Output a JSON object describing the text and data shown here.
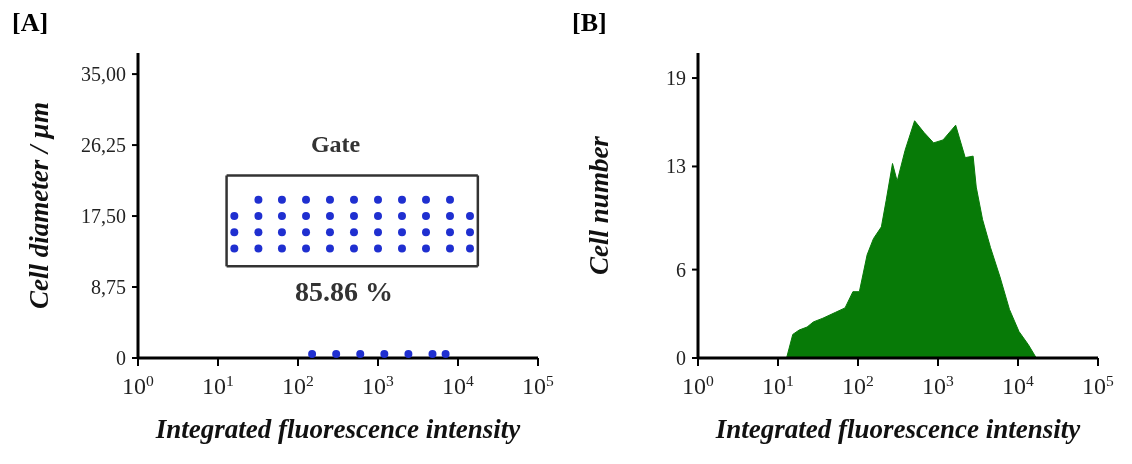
{
  "chart_data": [
    {
      "type": "scatter",
      "title": "[A]",
      "xlabel": "Integrated fluorescence intensity",
      "ylabel": "Cell diameter / µm",
      "log": "x",
      "marker": "circle",
      "xlim": [
        1,
        100000
      ],
      "xticks": [
        {
          "value": 1,
          "label": "10$^{0}$"
        },
        {
          "value": 10,
          "label": "10$^{1}$"
        },
        {
          "value": 100,
          "label": "10$^{2}$"
        },
        {
          "value": 1000,
          "label": "10$^{3}$"
        },
        {
          "value": 10000,
          "label": "10$^{4}$"
        },
        {
          "value": 100000,
          "label": "10$^{5}$"
        }
      ],
      "ylim": [
        0,
        37.6
      ],
      "yticks": [
        0,
        {
          "value": 8.75,
          "label": "8,75"
        },
        {
          "value": 17.5,
          "label": "17,50"
        },
        {
          "value": 26.25,
          "label": "26,25"
        },
        {
          "value": 35,
          "label": "35,00"
        }
      ],
      "annotations": [
        "Gate",
        "85.86 %"
      ],
      "series": [
        {
          "color": "#1f2fd0",
          "x": [
            16,
            32,
            63,
            126,
            251,
            501,
            1000,
            1995,
            3981,
            7943,
            14125,
            16,
            32,
            63,
            126,
            251,
            501,
            1000,
            1995,
            3981,
            7943,
            14125,
            16,
            32,
            63,
            126,
            251,
            501,
            1000,
            1995,
            3981,
            7943,
            14125,
            32,
            63,
            126,
            251,
            501,
            1000,
            1995,
            3981,
            7943,
            150,
            300,
            600,
            1200,
            2400,
            4800,
            7000
          ],
          "values": [
            13.5,
            13.5,
            13.5,
            13.5,
            13.5,
            13.5,
            13.5,
            13.5,
            13.5,
            13.5,
            13.5,
            15.5,
            15.5,
            15.5,
            15.5,
            15.5,
            15.5,
            15.5,
            15.5,
            15.5,
            15.5,
            15.5,
            17.5,
            17.5,
            17.5,
            17.5,
            17.5,
            17.5,
            17.5,
            17.5,
            17.5,
            17.5,
            17.5,
            19.5,
            19.5,
            19.5,
            19.5,
            19.5,
            19.5,
            19.5,
            19.5,
            19.5,
            0.5,
            0.5,
            0.5,
            0.5,
            0.5,
            0.5,
            0.5
          ]
        },
        {
          "type": "line",
          "marker": "none",
          "color": "#333333",
          "x": [
            12.8,
            17700
          ],
          "values": [
            22.5,
            22.5
          ]
        },
        {
          "type": "line",
          "marker": "none",
          "color": "#333333",
          "x": [
            12.8,
            17700
          ],
          "values": [
            11.3,
            11.3
          ]
        },
        {
          "type": "line",
          "marker": "none",
          "color": "#333333",
          "x": [
            12.8,
            12.8
          ],
          "values": [
            11.3,
            22.5
          ]
        },
        {
          "type": "line",
          "marker": "none",
          "color": "#333333",
          "x": [
            17700,
            17700
          ],
          "values": [
            11.3,
            22.5
          ]
        }
      ]
    },
    {
      "type": "area",
      "title": "[B]",
      "xlabel": "Integrated fluorescence intensity",
      "ylabel": "Cell number",
      "log": "x",
      "color": "#077a07",
      "xlim": [
        1,
        100000
      ],
      "xticks": [
        {
          "value": 1,
          "label": "10$^{0}$"
        },
        {
          "value": 10,
          "label": "10$^{1}$"
        },
        {
          "value": 100,
          "label": "10$^{2}$"
        },
        {
          "value": 1000,
          "label": "10$^{3}$"
        },
        {
          "value": 10000,
          "label": "10$^{4}$"
        },
        {
          "value": 100000,
          "label": "10$^{5}$"
        }
      ],
      "ylim": [
        0,
        20.7
      ],
      "yticks": [
        0,
        6,
        13,
        19
      ],
      "x": [
        12.8,
        15.3,
        18.4,
        23.1,
        27.7,
        36.4,
        52.4,
        68.9,
        86.4,
        104,
        130,
        156,
        196,
        225,
        270,
        309,
        388,
        510,
        670,
        881,
        1156,
        1663,
        2188,
        2748,
        3006,
        3606,
        4529,
        5957,
        7818,
        10280,
        13490,
        16940
      ],
      "values": [
        0,
        1.6,
        1.9,
        2.1,
        2.45,
        2.7,
        3.1,
        3.4,
        4.5,
        4.5,
        7.0,
        8.1,
        8.9,
        10.7,
        13.2,
        12.0,
        14.1,
        16.1,
        15.3,
        14.6,
        14.8,
        15.8,
        13.6,
        13.7,
        11.6,
        9.4,
        7.5,
        5.5,
        3.3,
        1.8,
        0.9,
        0
      ]
    }
  ]
}
